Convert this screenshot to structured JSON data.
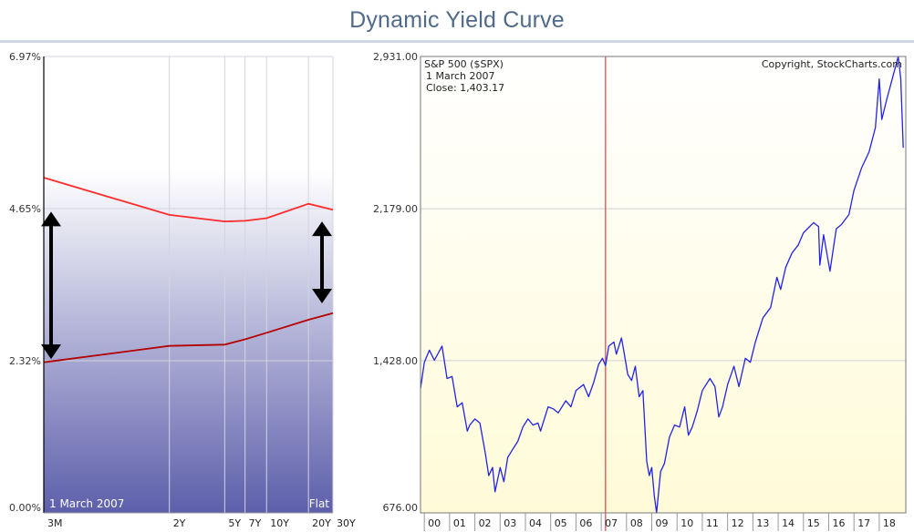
{
  "header": {
    "title": "Dynamic Yield Curve"
  },
  "colors": {
    "yield_current": "#ff2a2a",
    "yield_compare": "#b40000",
    "spx_line": "#2323e6",
    "date_marker": "#e04040",
    "arrow": "#000000"
  },
  "chart_data": [
    {
      "type": "line",
      "title": "",
      "date_label": "1 March 2007",
      "status_label": "Flat",
      "categories": [
        "3M",
        "2Y",
        "5Y",
        "7Y",
        "10Y",
        "20Y",
        "30Y"
      ],
      "maturity_years": [
        0.25,
        2,
        5,
        7,
        10,
        20,
        30
      ],
      "y_ticks": [
        "0.00%",
        "2.32%",
        "4.65%",
        "6.97%"
      ],
      "ylim": [
        0,
        6.97
      ],
      "series": [
        {
          "values": [
            5.12,
            4.55,
            4.45,
            4.46,
            4.5,
            4.72,
            4.63
          ]
        },
        {
          "values": [
            2.3,
            2.55,
            2.57,
            2.65,
            2.75,
            2.95,
            3.05
          ]
        }
      ],
      "arrows": [
        {
          "at_maturity": 0.25,
          "from": 2.35,
          "to": 4.6
        },
        {
          "at_maturity": 30,
          "from": 3.2,
          "to": 4.45
        }
      ]
    },
    {
      "type": "line",
      "title": "S&P 500 ($SPX)",
      "copyright": "Copyright, StockCharts.com",
      "annotation": [
        "1  March 2007",
        "Close: 1,403.17"
      ],
      "marker_year": 2007.17,
      "y_ticks": [
        "2,931.00",
        "2,179.00",
        "1,428.00",
        "676.00"
      ],
      "y_tick_values": [
        2931,
        2179,
        1428,
        676
      ],
      "ylim": [
        676,
        2931
      ],
      "x_ticks": [
        "00",
        "01",
        "02",
        "03",
        "04",
        "05",
        "06",
        "07",
        "08",
        "09",
        "10",
        "11",
        "12",
        "13",
        "14",
        "15",
        "16",
        "17",
        "18"
      ],
      "xlim": [
        1999.85,
        2019.05
      ],
      "series": [
        {
          "points": [
            [
              1999.85,
              1290
            ],
            [
              2000.0,
              1420
            ],
            [
              2000.2,
              1480
            ],
            [
              2000.4,
              1430
            ],
            [
              2000.7,
              1500
            ],
            [
              2000.9,
              1340
            ],
            [
              2001.1,
              1350
            ],
            [
              2001.3,
              1200
            ],
            [
              2001.5,
              1220
            ],
            [
              2001.7,
              1080
            ],
            [
              2001.8,
              1110
            ],
            [
              2002.0,
              1140
            ],
            [
              2002.2,
              1120
            ],
            [
              2002.4,
              980
            ],
            [
              2002.55,
              860
            ],
            [
              2002.7,
              900
            ],
            [
              2002.8,
              780
            ],
            [
              2003.0,
              900
            ],
            [
              2003.15,
              830
            ],
            [
              2003.3,
              950
            ],
            [
              2003.5,
              990
            ],
            [
              2003.7,
              1030
            ],
            [
              2003.9,
              1100
            ],
            [
              2004.1,
              1140
            ],
            [
              2004.3,
              1110
            ],
            [
              2004.5,
              1120
            ],
            [
              2004.6,
              1080
            ],
            [
              2004.9,
              1200
            ],
            [
              2005.1,
              1190
            ],
            [
              2005.3,
              1170
            ],
            [
              2005.6,
              1230
            ],
            [
              2005.8,
              1200
            ],
            [
              2006.0,
              1280
            ],
            [
              2006.3,
              1310
            ],
            [
              2006.5,
              1250
            ],
            [
              2006.7,
              1320
            ],
            [
              2006.9,
              1410
            ],
            [
              2007.05,
              1440
            ],
            [
              2007.17,
              1403
            ],
            [
              2007.3,
              1500
            ],
            [
              2007.5,
              1520
            ],
            [
              2007.6,
              1460
            ],
            [
              2007.8,
              1540
            ],
            [
              2007.9,
              1470
            ],
            [
              2008.05,
              1360
            ],
            [
              2008.2,
              1330
            ],
            [
              2008.35,
              1400
            ],
            [
              2008.5,
              1250
            ],
            [
              2008.65,
              1280
            ],
            [
              2008.8,
              930
            ],
            [
              2008.9,
              860
            ],
            [
              2009.0,
              900
            ],
            [
              2009.1,
              760
            ],
            [
              2009.19,
              676
            ],
            [
              2009.35,
              880
            ],
            [
              2009.5,
              920
            ],
            [
              2009.7,
              1050
            ],
            [
              2009.9,
              1110
            ],
            [
              2010.1,
              1100
            ],
            [
              2010.3,
              1200
            ],
            [
              2010.45,
              1060
            ],
            [
              2010.6,
              1100
            ],
            [
              2010.8,
              1180
            ],
            [
              2011.0,
              1280
            ],
            [
              2011.3,
              1340
            ],
            [
              2011.5,
              1300
            ],
            [
              2011.65,
              1150
            ],
            [
              2011.8,
              1200
            ],
            [
              2012.0,
              1310
            ],
            [
              2012.25,
              1400
            ],
            [
              2012.45,
              1300
            ],
            [
              2012.7,
              1440
            ],
            [
              2012.9,
              1420
            ],
            [
              2013.1,
              1520
            ],
            [
              2013.4,
              1640
            ],
            [
              2013.7,
              1690
            ],
            [
              2013.95,
              1840
            ],
            [
              2014.1,
              1780
            ],
            [
              2014.3,
              1890
            ],
            [
              2014.55,
              1960
            ],
            [
              2014.8,
              2000
            ],
            [
              2015.0,
              2060
            ],
            [
              2015.4,
              2110
            ],
            [
              2015.6,
              2090
            ],
            [
              2015.65,
              1900
            ],
            [
              2015.8,
              2050
            ],
            [
              2016.05,
              1870
            ],
            [
              2016.3,
              2080
            ],
            [
              2016.5,
              2100
            ],
            [
              2016.8,
              2150
            ],
            [
              2017.0,
              2270
            ],
            [
              2017.3,
              2380
            ],
            [
              2017.6,
              2460
            ],
            [
              2017.85,
              2580
            ],
            [
              2018.0,
              2820
            ],
            [
              2018.1,
              2620
            ],
            [
              2018.3,
              2720
            ],
            [
              2018.6,
              2860
            ],
            [
              2018.75,
              2930
            ],
            [
              2018.85,
              2820
            ],
            [
              2018.95,
              2480
            ]
          ]
        }
      ]
    }
  ]
}
